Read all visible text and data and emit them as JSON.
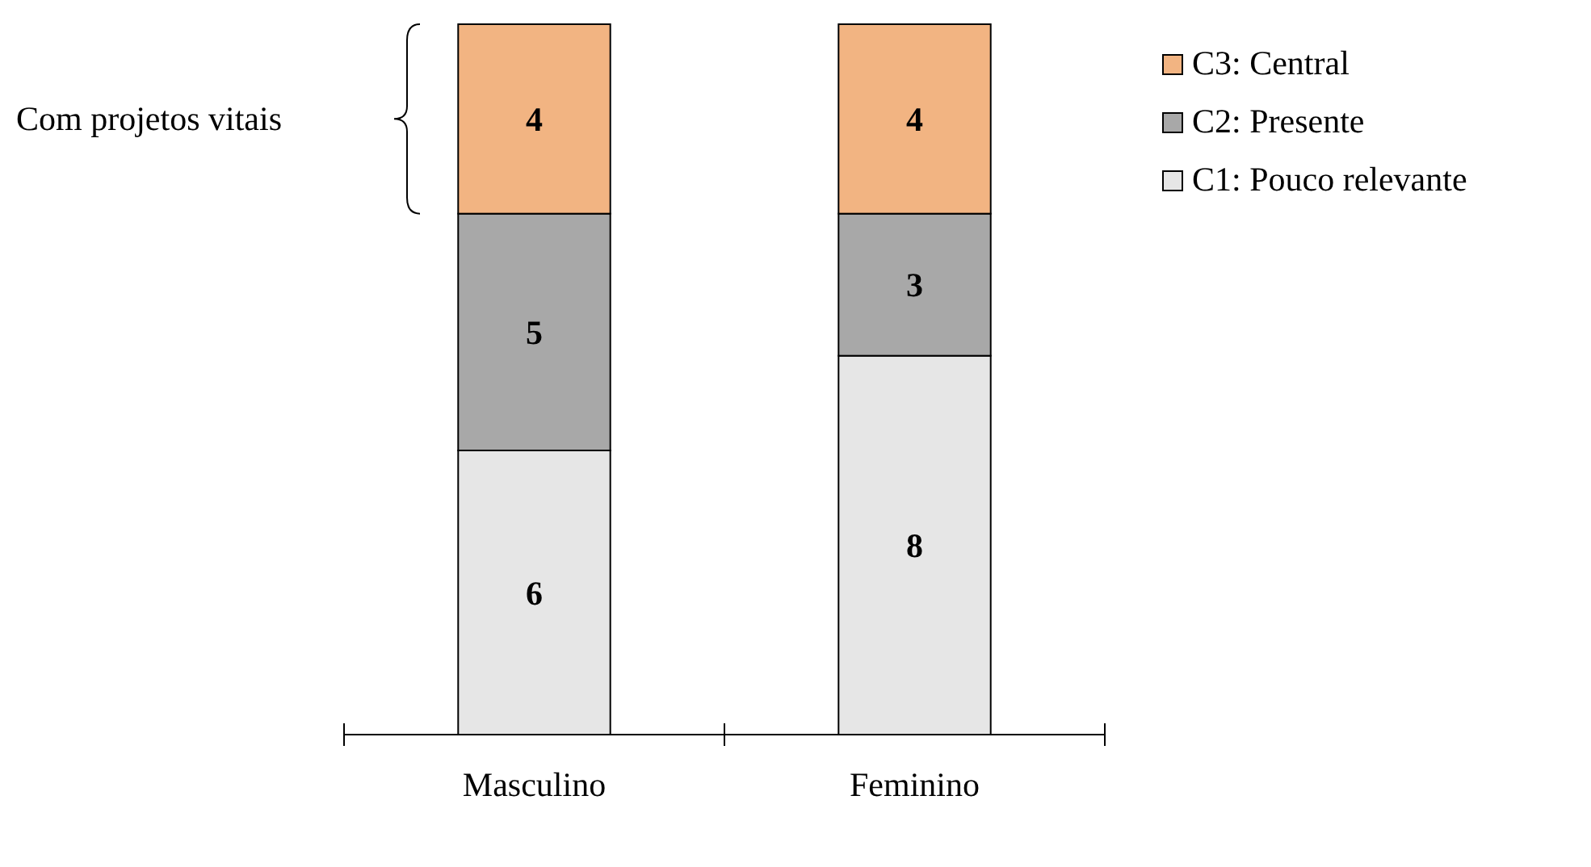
{
  "chart_data": {
    "type": "bar",
    "stacked": true,
    "categories": [
      "Masculino",
      "Feminino"
    ],
    "series": [
      {
        "name": "C1: Pouco relevante",
        "color": "#e6e6e6",
        "values": [
          6,
          8
        ]
      },
      {
        "name": "C2: Presente",
        "color": "#a8a8a8",
        "values": [
          5,
          3
        ]
      },
      {
        "name": "C3: Central",
        "color": "#f2b482",
        "values": [
          4,
          4
        ]
      }
    ],
    "data_labels": true,
    "legend": "top right",
    "annotations": [
      "Com projetos vitais"
    ]
  }
}
